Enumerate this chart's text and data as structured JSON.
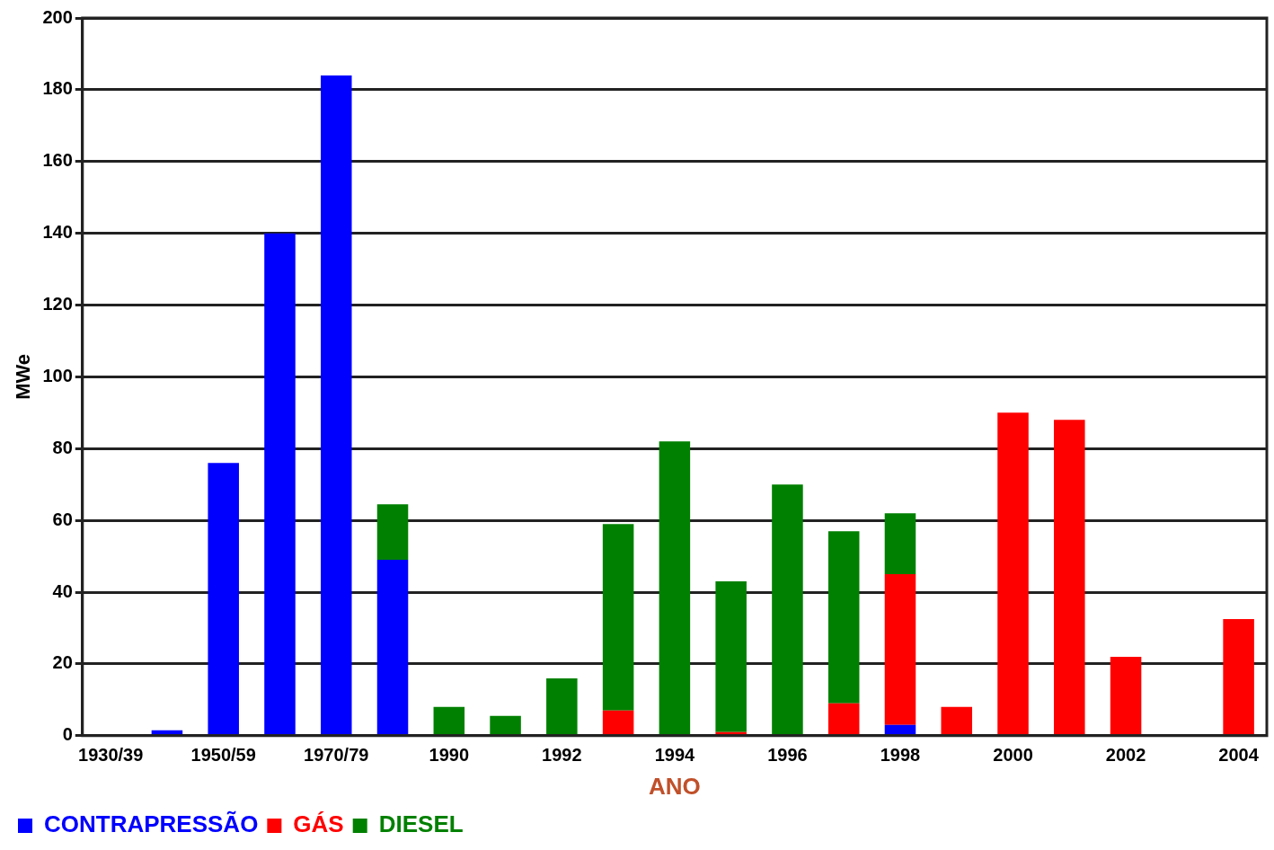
{
  "chart_data": {
    "type": "bar",
    "stacked": true,
    "xlabel": "ANO",
    "ylabel": "MWe",
    "categories": [
      "1930/39",
      null,
      "1950/59",
      null,
      "1970/79",
      null,
      "1990",
      null,
      "1992",
      null,
      "1994",
      null,
      "1996",
      null,
      "1998",
      null,
      "2000",
      null,
      "2002",
      null,
      "2004"
    ],
    "series": [
      {
        "name": "CONTRAPRESSÃO",
        "color": "#0000ff",
        "values": [
          0,
          1.5,
          76,
          140,
          184,
          49,
          0,
          0,
          0,
          0,
          0,
          0,
          0,
          0,
          3,
          0,
          0,
          0,
          0,
          0,
          0
        ]
      },
      {
        "name": "GÁS",
        "color": "#ff0000",
        "values": [
          0,
          0,
          0,
          0,
          0,
          0,
          0,
          0,
          0,
          7,
          0,
          1,
          0,
          9,
          42,
          8,
          90,
          88,
          22,
          0,
          32.5
        ]
      },
      {
        "name": "DIESEL",
        "color": "#008000",
        "values": [
          0,
          0,
          0,
          0,
          0,
          15.5,
          8,
          5.5,
          16,
          52,
          82,
          42,
          70,
          48,
          17,
          0,
          0,
          0,
          0,
          0,
          0
        ]
      }
    ],
    "ylim": [
      0,
      200
    ],
    "yticks": [
      0,
      20,
      40,
      60,
      80,
      100,
      120,
      140,
      160,
      180,
      200
    ],
    "grid": "y",
    "legend": "bottom left"
  }
}
